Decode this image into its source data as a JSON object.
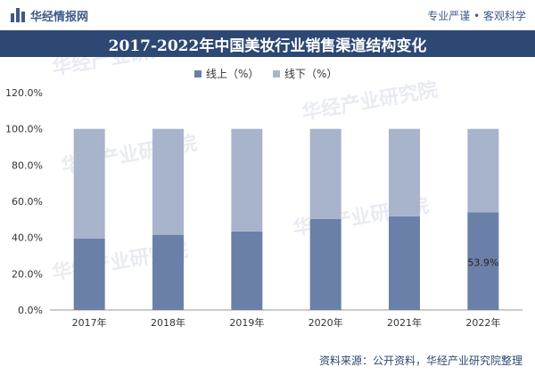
{
  "header": {
    "brand": "华经情报网",
    "slogan": "专业严谨 • 客观科学",
    "title": "2017-2022年中国美妆行业销售渠道结构变化"
  },
  "footer": {
    "source": "资料来源：公开资料，华经产业研究院整理"
  },
  "watermark": {
    "text": "华经产业研究院"
  },
  "colors": {
    "online": "#6b80a8",
    "offline": "#a8b4cc",
    "title_band": "#2e4874"
  },
  "chart_data": {
    "type": "bar",
    "stacked": true,
    "categories": [
      "2017年",
      "2018年",
      "2019年",
      "2020年",
      "2021年",
      "2022年"
    ],
    "series": [
      {
        "name": "线上（%）",
        "values": [
          39.5,
          41.5,
          43.4,
          50.2,
          51.7,
          53.9
        ]
      },
      {
        "name": "线下（%）",
        "values": [
          60.5,
          58.5,
          56.6,
          49.8,
          48.3,
          46.1
        ]
      }
    ],
    "ylim": [
      0,
      120
    ],
    "yticks": [
      "0.0%",
      "20.0%",
      "40.0%",
      "60.0%",
      "80.0%",
      "100.0%",
      "120.0%"
    ],
    "legend_position": "top-center",
    "grid": false,
    "data_labels": [
      {
        "category_index": 5,
        "series_index": 0,
        "text": "53.9%"
      }
    ]
  }
}
